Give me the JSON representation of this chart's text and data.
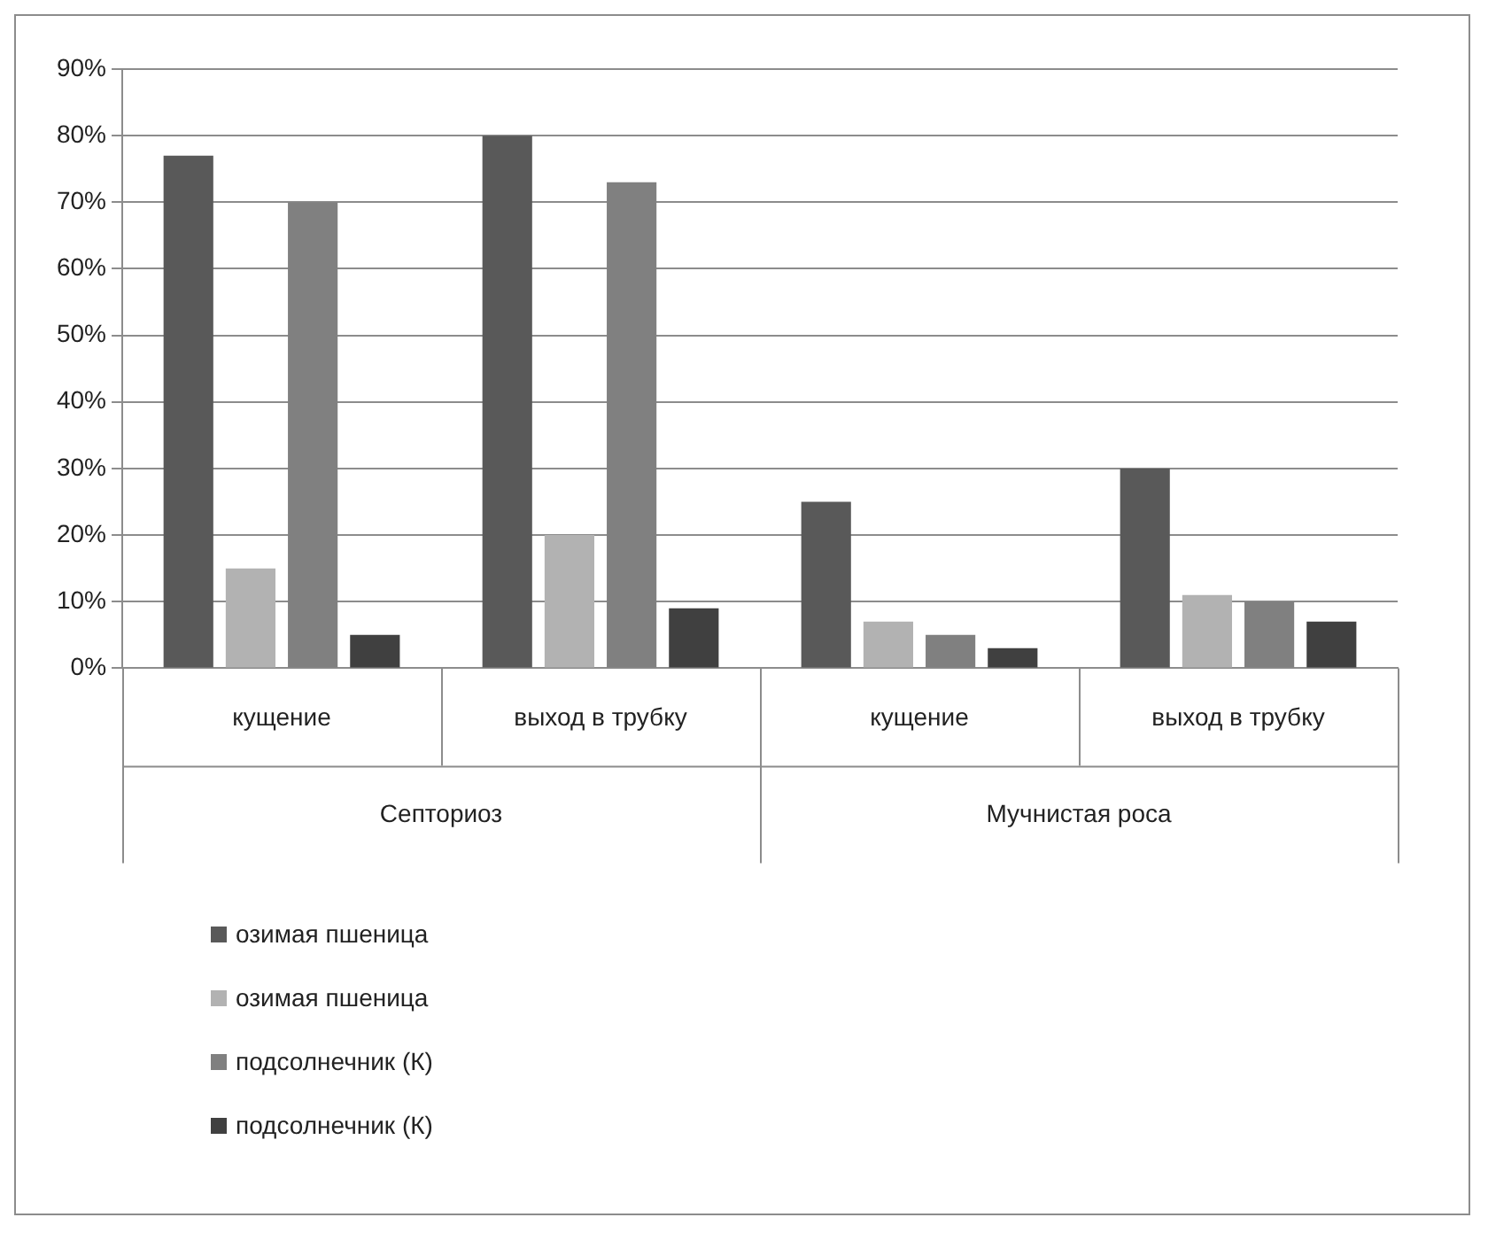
{
  "chart_data": {
    "type": "bar",
    "categories": [
      "кущение",
      "выход в трубку",
      "кущение",
      "выход в трубку"
    ],
    "series": [
      {
        "name": "озимая пшеница",
        "color": "#595959",
        "values": [
          77,
          80,
          25,
          30
        ]
      },
      {
        "name": "озимая пшеница",
        "color": "#b2b2b2",
        "values": [
          15,
          20,
          7,
          11
        ]
      },
      {
        "name": "подсолнечник (К)",
        "color": "#808080",
        "values": [
          70,
          73,
          5,
          10
        ]
      },
      {
        "name": "подсолнечник (К)",
        "color": "#404040",
        "values": [
          5,
          9,
          3,
          7
        ]
      }
    ],
    "annotations": [
      "Септориоз",
      "Мучнистая роса"
    ],
    "ylim": [
      0,
      90
    ],
    "yticks": [
      {
        "value": 0,
        "label": "0%"
      },
      {
        "value": 10,
        "label": "10%"
      },
      {
        "value": 20,
        "label": "20%"
      },
      {
        "value": 30,
        "label": "30%"
      },
      {
        "value": 40,
        "label": "40%"
      },
      {
        "value": 50,
        "label": "50%"
      },
      {
        "value": 60,
        "label": "60%"
      },
      {
        "value": 70,
        "label": "70%"
      },
      {
        "value": 80,
        "label": "80%"
      },
      {
        "value": 90,
        "label": "90%"
      }
    ],
    "grid": "y",
    "legend": "bottom"
  }
}
